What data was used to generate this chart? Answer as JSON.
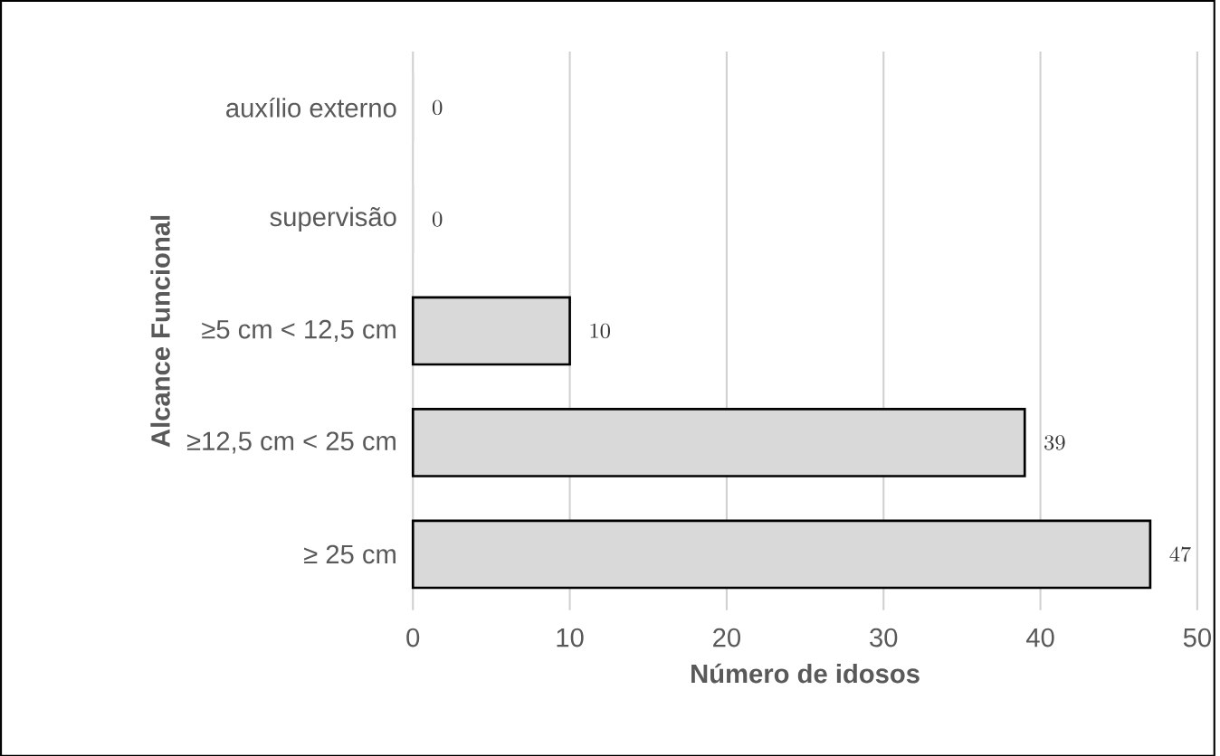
{
  "chart_data": {
    "type": "bar",
    "orientation": "horizontal",
    "categories": [
      "auxílio externo",
      "supervisão",
      "≥5 cm < 12,5 cm",
      "≥12,5 cm < 25 cm",
      "≥ 25 cm"
    ],
    "values": [
      0,
      0,
      10,
      39,
      47
    ],
    "color": "#d9d9d9",
    "xlim": [
      0,
      50
    ],
    "xticks": [
      0,
      10,
      20,
      30,
      40,
      50
    ],
    "xlabel": "Número de idosos",
    "ylabel": "Alcance Funcional",
    "grid": "x",
    "data_labels": true
  }
}
